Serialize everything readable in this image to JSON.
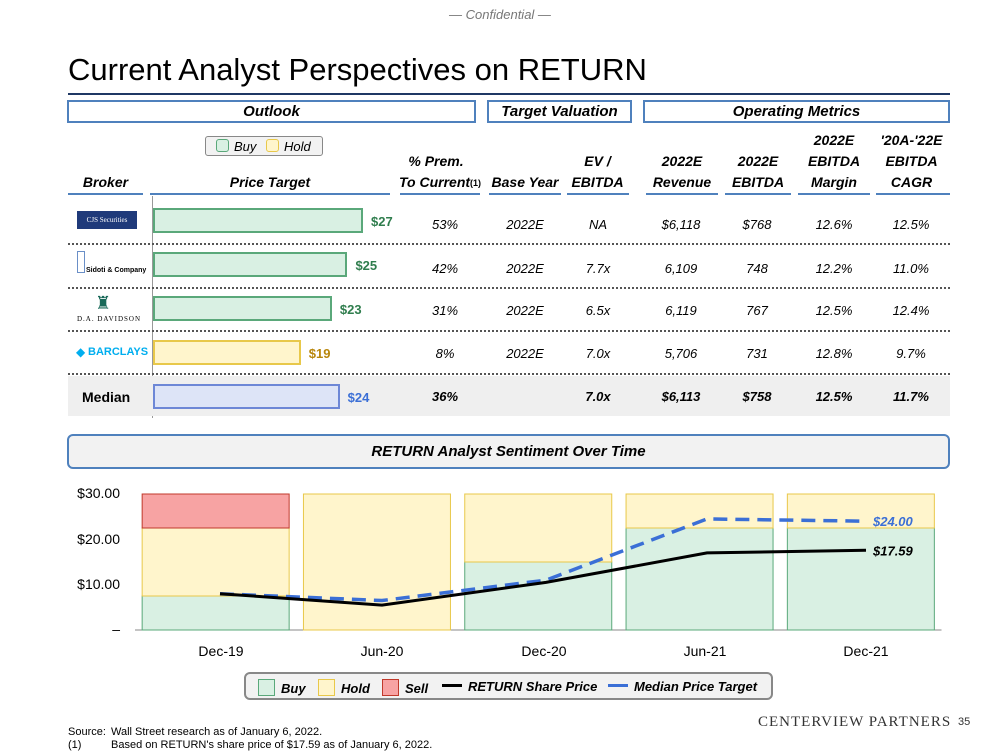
{
  "confidential": "— Confidential —",
  "title": "Current Analyst Perspectives on RETURN",
  "sections": {
    "outlook": "Outlook",
    "target_valuation": "Target Valuation",
    "operating_metrics": "Operating Metrics"
  },
  "legend_top": {
    "buy": "Buy",
    "hold": "Hold"
  },
  "columns": {
    "broker": "Broker",
    "price_target": "Price Target",
    "prem_1": "% Prem.",
    "prem_2": "To Current",
    "prem_note": "(1)",
    "base_year": "Base Year",
    "ev_1": "EV /",
    "ev_2": "EBITDA",
    "rev_1": "2022E",
    "rev_2": "Revenue",
    "ebitda_1": "2022E",
    "ebitda_2": "EBITDA",
    "margin_1": "2022E",
    "margin_2": "EBITDA",
    "margin_3": "Margin",
    "cagr_1": "'20A-'22E",
    "cagr_2": "EBITDA",
    "cagr_3": "CAGR"
  },
  "brokers": [
    {
      "logo": "CJS Securities",
      "rating": "buy",
      "target": 27,
      "target_label": "$27",
      "prem": "53%",
      "base_year": "2022E",
      "ev_ebitda": "NA",
      "revenue": "$6,118",
      "ebitda": "$768",
      "margin": "12.6%",
      "cagr": "12.5%"
    },
    {
      "logo": "Sidoti & Company",
      "rating": "buy",
      "target": 25,
      "target_label": "$25",
      "prem": "42%",
      "base_year": "2022E",
      "ev_ebitda": "7.7x",
      "revenue": "6,109",
      "ebitda": "748",
      "margin": "12.2%",
      "cagr": "11.0%"
    },
    {
      "logo": "D.A. DAVIDSON",
      "rating": "buy",
      "target": 23,
      "target_label": "$23",
      "prem": "31%",
      "base_year": "2022E",
      "ev_ebitda": "6.5x",
      "revenue": "6,119",
      "ebitda": "767",
      "margin": "12.5%",
      "cagr": "12.4%"
    },
    {
      "logo": "BARCLAYS",
      "rating": "hold",
      "target": 19,
      "target_label": "$19",
      "prem": "8%",
      "base_year": "2022E",
      "ev_ebitda": "7.0x",
      "revenue": "5,706",
      "ebitda": "731",
      "margin": "12.8%",
      "cagr": "9.7%"
    }
  ],
  "median": {
    "label": "Median",
    "target": 24,
    "target_label": "$24",
    "prem": "36%",
    "ev_ebitda": "7.0x",
    "revenue": "$6,113",
    "ebitda": "$758",
    "margin": "12.5%",
    "cagr": "11.7%"
  },
  "sentiment_title": "RETURN Analyst Sentiment Over Time",
  "chart_data": {
    "type": "bar",
    "title": "RETURN Analyst Sentiment Over Time",
    "categories": [
      "Dec-19",
      "Jun-20",
      "Dec-20",
      "Jun-21",
      "Dec-21"
    ],
    "y_ticks": [
      "$30.00",
      "$20.00",
      "$10.00",
      "–"
    ],
    "ylim": [
      0,
      30
    ],
    "series": [
      {
        "name": "Buy",
        "values": [
          7.5,
          0,
          15,
          22.5,
          22.5
        ]
      },
      {
        "name": "Hold",
        "values": [
          15,
          30,
          15,
          7.5,
          7.5
        ]
      },
      {
        "name": "Sell",
        "values": [
          7.5,
          0,
          0,
          0,
          0
        ]
      },
      {
        "name": "RETURN Share Price",
        "values": [
          8.0,
          5.5,
          10.5,
          17.0,
          17.59
        ]
      },
      {
        "name": "Median Price Target",
        "values": [
          8.0,
          6.5,
          11.0,
          24.5,
          24.0
        ]
      }
    ],
    "end_labels": {
      "median_target": "$24.00",
      "share_price": "$17.59"
    },
    "colors": {
      "buy": "#d9f0e3",
      "buy_border": "#5aa87a",
      "hold": "#fff5cc",
      "hold_border": "#e8c84a",
      "sell": "#f7a3a3",
      "sell_border": "#c0392b",
      "price": "#000000",
      "target": "#3b6fd6"
    }
  },
  "legend_bottom": {
    "buy": "Buy",
    "hold": "Hold",
    "sell": "Sell",
    "price": "RETURN Share Price",
    "target": "Median Price Target"
  },
  "footnotes": {
    "src_tag": "Source:",
    "src_text": "Wall Street research as of January 6, 2022.",
    "n1_tag": "(1)",
    "n1_text": "Based on RETURN's share price of $17.59 as of January 6, 2022."
  },
  "logo": "CENTERVIEW PARTNERS",
  "page_number": "35"
}
